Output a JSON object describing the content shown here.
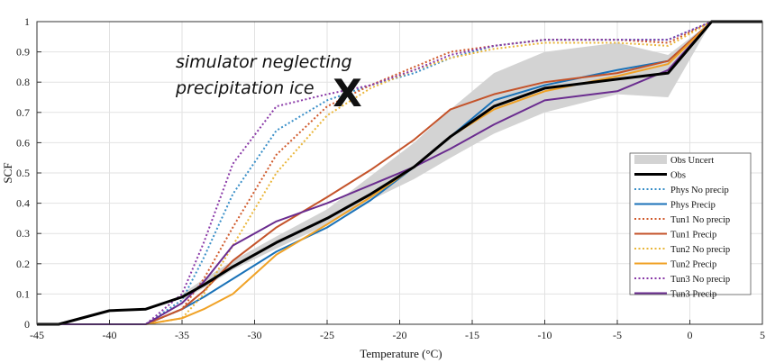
{
  "chart_data": {
    "type": "line",
    "xlabel": "Temperature (°C)",
    "ylabel": "SCF",
    "xlim": [
      -45,
      5
    ],
    "ylim": [
      0,
      1
    ],
    "xticks": [
      -45,
      -40,
      -35,
      -30,
      -25,
      -20,
      -15,
      -10,
      -5,
      0,
      5
    ],
    "yticks": [
      0,
      0.1,
      0.2,
      0.3,
      0.4,
      0.5,
      0.6,
      0.7,
      0.8,
      0.9,
      1
    ],
    "grid": true,
    "legend_position": "lower-right",
    "annotation": {
      "lines": [
        "simulator neglecting",
        "precipitation ice"
      ],
      "marker_text": "X",
      "x": -23.6,
      "y": 0.765
    },
    "uncertainty_band": {
      "name": "Obs Uncert",
      "color": "#d3d3d3",
      "x": [
        -35,
        -33.5,
        -31.5,
        -28.5,
        -25,
        -22,
        -19,
        -16.5,
        -13.5,
        -10,
        -5,
        -1.5,
        1.5,
        5
      ],
      "lower": [
        0.08,
        0.12,
        0.18,
        0.25,
        0.33,
        0.41,
        0.48,
        0.55,
        0.63,
        0.7,
        0.76,
        0.75,
        1.0,
        1.0
      ],
      "upper": [
        0.1,
        0.15,
        0.21,
        0.29,
        0.38,
        0.49,
        0.6,
        0.71,
        0.83,
        0.9,
        0.93,
        0.89,
        1.0,
        1.0
      ]
    },
    "series": [
      {
        "name": "Obs",
        "color": "#000000",
        "style": "solid",
        "width": 3,
        "x": [
          -45,
          -43.5,
          -40,
          -37.5,
          -35,
          -33.5,
          -31.5,
          -28.5,
          -25,
          -22,
          -19,
          -16.5,
          -13.5,
          -10,
          -5,
          -1.5,
          1.5,
          5
        ],
        "y": [
          0,
          0,
          0.045,
          0.05,
          0.09,
          0.13,
          0.19,
          0.27,
          0.35,
          0.43,
          0.52,
          0.62,
          0.72,
          0.78,
          0.81,
          0.83,
          1.0,
          1.0
        ]
      },
      {
        "name": "Phys No precip",
        "color": "#3a8fc8",
        "style": "dotted",
        "width": 2,
        "x": [
          -45,
          -43.5,
          -40,
          -37.5,
          -35,
          -33.5,
          -31.5,
          -28.5,
          -25,
          -22,
          -19,
          -16.5,
          -13.5,
          -10,
          -5,
          -1.5,
          1.5,
          5
        ],
        "y": [
          0,
          0,
          0,
          0,
          0.08,
          0.22,
          0.43,
          0.64,
          0.74,
          0.79,
          0.83,
          0.88,
          0.92,
          0.94,
          0.94,
          0.94,
          1.0,
          1.0
        ]
      },
      {
        "name": "Phys Precip",
        "color": "#1a72b8",
        "style": "solid",
        "width": 2,
        "x": [
          -45,
          -43.5,
          -40,
          -37.5,
          -35,
          -33.5,
          -31.5,
          -28.5,
          -25,
          -22,
          -19,
          -16.5,
          -13.5,
          -10,
          -5,
          -1.5,
          1.5,
          5
        ],
        "y": [
          0,
          0,
          0,
          0,
          0.05,
          0.09,
          0.15,
          0.24,
          0.32,
          0.41,
          0.52,
          0.62,
          0.74,
          0.79,
          0.84,
          0.87,
          1.0,
          1.0
        ]
      },
      {
        "name": "Tun1 No precip",
        "color": "#d05a2c",
        "style": "dotted",
        "width": 2,
        "x": [
          -45,
          -43.5,
          -40,
          -37.5,
          -35,
          -33.5,
          -31.5,
          -28.5,
          -25,
          -22,
          -19,
          -16.5,
          -13.5,
          -10,
          -5,
          -1.5,
          1.5,
          5
        ],
        "y": [
          0,
          0,
          0,
          0,
          0.05,
          0.15,
          0.32,
          0.56,
          0.72,
          0.79,
          0.85,
          0.9,
          0.92,
          0.94,
          0.94,
          0.93,
          1.0,
          1.0
        ]
      },
      {
        "name": "Tun1 Precip",
        "color": "#c4532a",
        "style": "solid",
        "width": 2,
        "x": [
          -45,
          -43.5,
          -40,
          -37.5,
          -35,
          -33.5,
          -31.5,
          -28.5,
          -25,
          -22,
          -19,
          -16.5,
          -13.5,
          -10,
          -5,
          -1.5,
          1.5,
          5
        ],
        "y": [
          0,
          0,
          0,
          0,
          0.05,
          0.11,
          0.21,
          0.32,
          0.42,
          0.51,
          0.61,
          0.71,
          0.76,
          0.8,
          0.83,
          0.87,
          1.0,
          1.0
        ]
      },
      {
        "name": "Tun2 No precip",
        "color": "#eab63a",
        "style": "dotted",
        "width": 2,
        "x": [
          -45,
          -43.5,
          -40,
          -37.5,
          -35,
          -33.5,
          -31.5,
          -28.5,
          -25,
          -22,
          -19,
          -16.5,
          -13.5,
          -10,
          -5,
          -1.5,
          1.5,
          5
        ],
        "y": [
          0,
          0,
          0,
          0,
          0.02,
          0.1,
          0.26,
          0.5,
          0.69,
          0.78,
          0.84,
          0.88,
          0.91,
          0.93,
          0.93,
          0.92,
          1.0,
          1.0
        ]
      },
      {
        "name": "Tun2 Precip",
        "color": "#f0a226",
        "style": "solid",
        "width": 2,
        "x": [
          -45,
          -43.5,
          -40,
          -37.5,
          -35,
          -33.5,
          -31.5,
          -28.5,
          -25,
          -22,
          -19,
          -16.5,
          -13.5,
          -10,
          -5,
          -1.5,
          1.5,
          5
        ],
        "y": [
          0,
          0,
          0,
          0,
          0.02,
          0.05,
          0.1,
          0.23,
          0.33,
          0.42,
          0.52,
          0.62,
          0.71,
          0.77,
          0.82,
          0.86,
          1.0,
          1.0
        ]
      },
      {
        "name": "Tun3 No precip",
        "color": "#8a3aa8",
        "style": "dotted",
        "width": 2,
        "x": [
          -45,
          -43.5,
          -40,
          -37.5,
          -35,
          -33.5,
          -31.5,
          -28.5,
          -25,
          -22,
          -19,
          -16.5,
          -13.5,
          -10,
          -5,
          -1.5,
          1.5,
          5
        ],
        "y": [
          0,
          0,
          0,
          0,
          0.1,
          0.27,
          0.53,
          0.72,
          0.76,
          0.79,
          0.84,
          0.89,
          0.92,
          0.94,
          0.94,
          0.94,
          1.0,
          1.0
        ]
      },
      {
        "name": "Tun3 Precip",
        "color": "#6a2c8f",
        "style": "solid",
        "width": 2,
        "x": [
          -45,
          -43.5,
          -40,
          -37.5,
          -35,
          -33.5,
          -31.5,
          -28.5,
          -25,
          -22,
          -19,
          -16.5,
          -13.5,
          -10,
          -5,
          -1.5,
          1.5,
          5
        ],
        "y": [
          0,
          0,
          0,
          0,
          0.07,
          0.14,
          0.26,
          0.34,
          0.4,
          0.46,
          0.52,
          0.58,
          0.66,
          0.74,
          0.77,
          0.84,
          1.0,
          1.0
        ]
      }
    ]
  }
}
